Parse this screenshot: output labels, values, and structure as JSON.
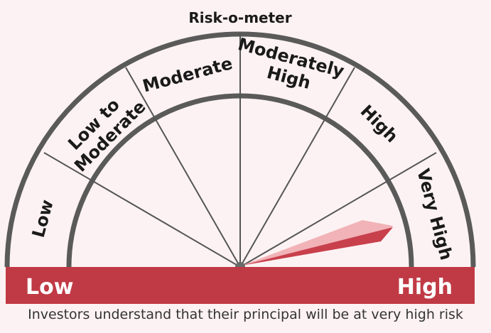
{
  "title": "Risk-o-meter",
  "segments": [
    {
      "id": "low",
      "lines": [
        "Low"
      ]
    },
    {
      "id": "low-to-moderate",
      "lines": [
        "Low to",
        "Moderate"
      ]
    },
    {
      "id": "moderate",
      "lines": [
        "Moderate"
      ]
    },
    {
      "id": "moderately-high",
      "lines": [
        "Moderately",
        "High"
      ]
    },
    {
      "id": "high",
      "lines": [
        "High"
      ]
    },
    {
      "id": "very-high",
      "lines": [
        "Very High"
      ]
    }
  ],
  "band": {
    "left_label": "Low",
    "right_label": "High"
  },
  "risk_level": "Very High",
  "caption": "Investors understand that their principal will be at very high risk",
  "colors": {
    "background": "#fdf2f3",
    "band": "#c03a45",
    "needle_dark": "#c8404c",
    "needle_light": "#f1b3b7",
    "outline": "#555555",
    "text": "#1a1a1a"
  }
}
